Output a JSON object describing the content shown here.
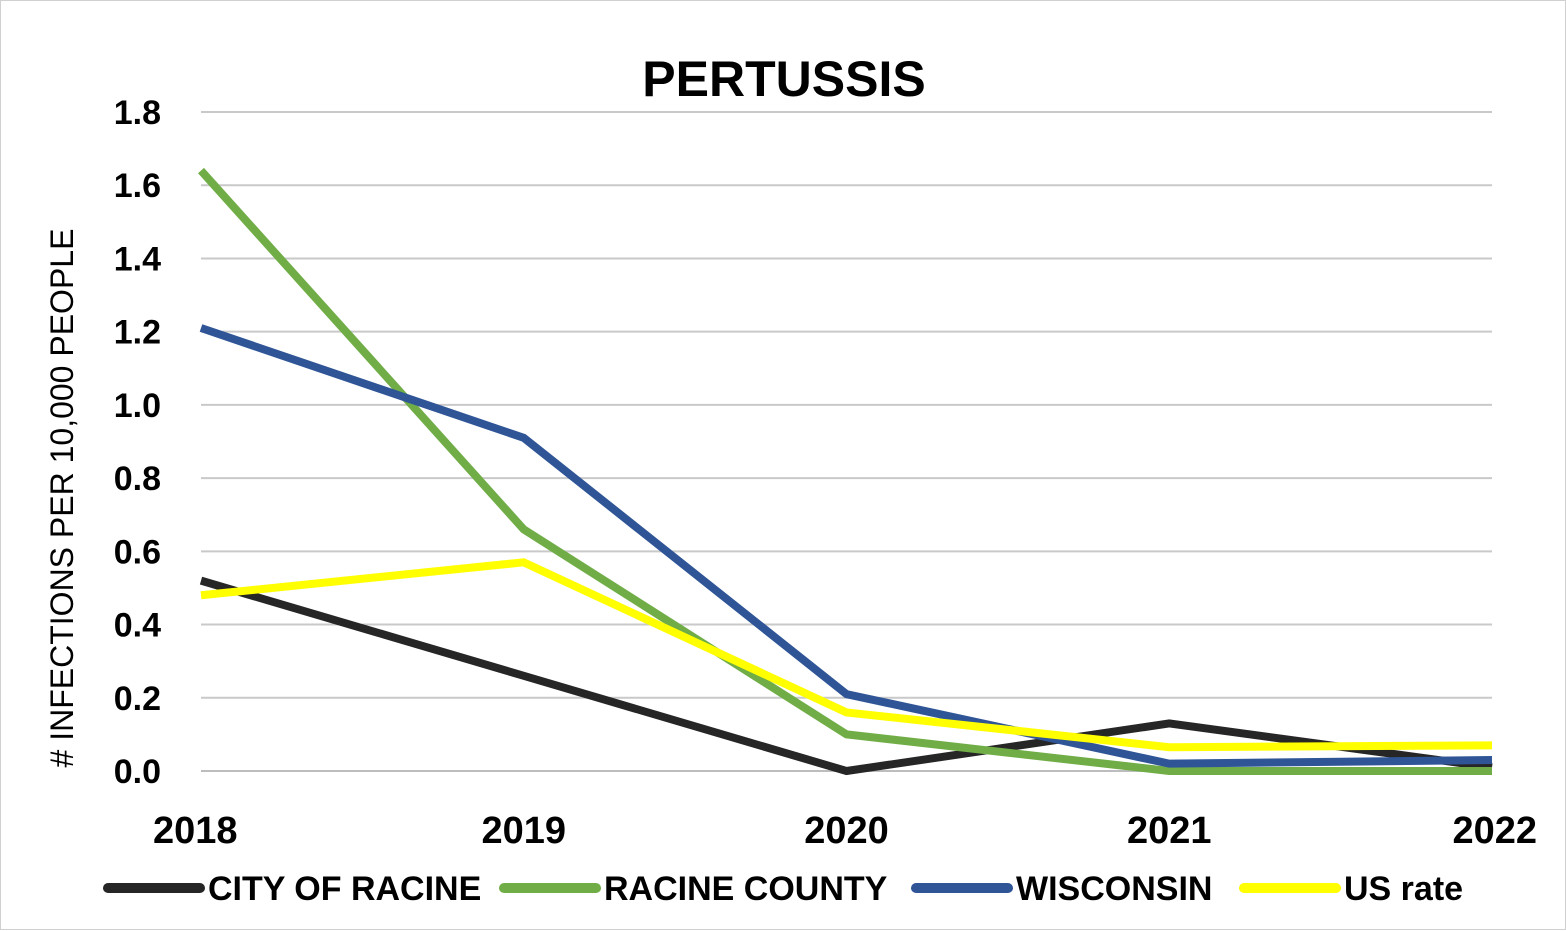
{
  "chart_data": {
    "type": "line",
    "title": "PERTUSSIS",
    "xlabel": "",
    "ylabel": "# INFECTIONS PER 10,000 PEOPLE",
    "categories": [
      "2018",
      "2019",
      "2020",
      "2021",
      "2022"
    ],
    "ylim": [
      0,
      1.8
    ],
    "yticks": [
      "0.0",
      "0.2",
      "0.4",
      "0.6",
      "0.8",
      "1.0",
      "1.2",
      "1.4",
      "1.6",
      "1.8"
    ],
    "grid": true,
    "legend": "bottom",
    "series": [
      {
        "name": "CITY OF RACINE",
        "color": "#262626",
        "values": [
          0.52,
          0.26,
          0.0,
          0.13,
          0.01
        ]
      },
      {
        "name": "RACINE COUNTY",
        "color": "#70ad47",
        "values": [
          1.64,
          0.66,
          0.1,
          0.0,
          0.0
        ]
      },
      {
        "name": "WISCONSIN",
        "color": "#2f5597",
        "values": [
          1.21,
          0.91,
          0.21,
          0.02,
          0.03
        ]
      },
      {
        "name": "US rate",
        "color": "#ffff00",
        "values": [
          0.48,
          0.57,
          0.16,
          0.065,
          0.07
        ]
      }
    ]
  }
}
